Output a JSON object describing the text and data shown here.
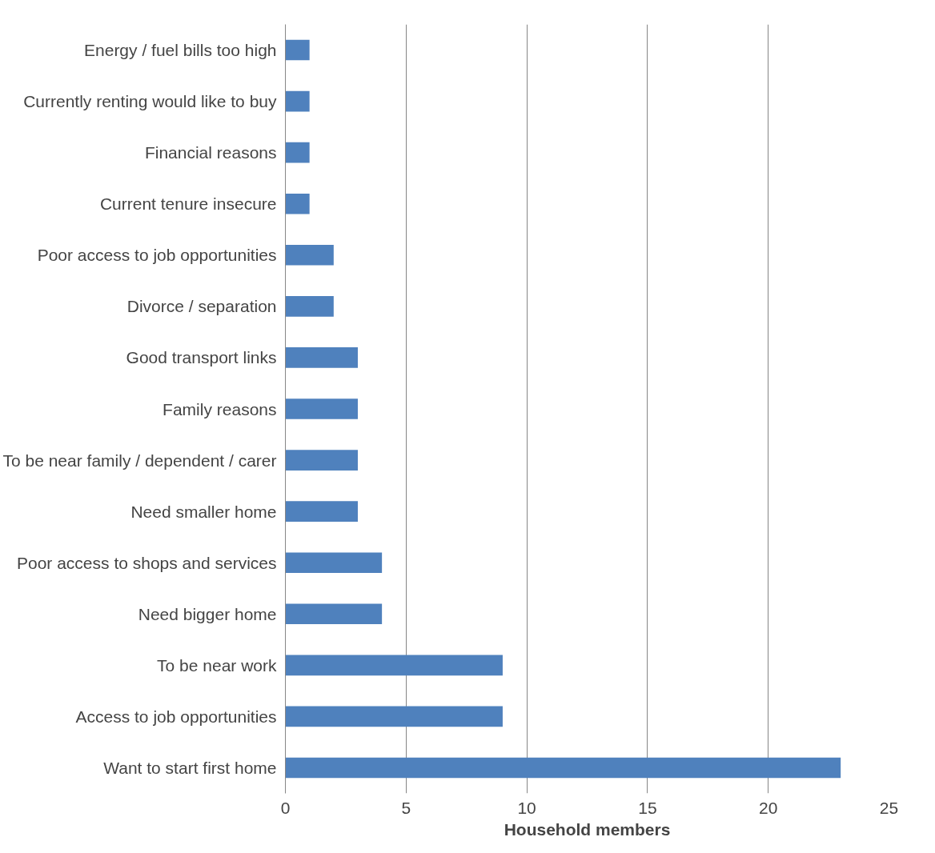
{
  "chart_data": {
    "type": "bar",
    "orientation": "horizontal",
    "xlabel": "Household members",
    "categories": [
      "Energy / fuel bills too high",
      "Currently renting would like to buy",
      "Financial reasons",
      "Current tenure insecure",
      "Poor access to job opportunities",
      "Divorce / separation",
      "Good transport links",
      "Family reasons",
      "To be near family / dependent / carer",
      "Need smaller home",
      "Poor access to shops and services",
      "Need bigger home",
      "To be near work",
      "Access to job opportunities",
      "Want to start first home"
    ],
    "values": [
      1,
      1,
      1,
      1,
      2,
      2,
      3,
      3,
      3,
      3,
      4,
      4,
      9,
      9,
      23
    ],
    "color": "#4f81bd",
    "xlim": [
      0,
      25
    ],
    "xticks": [
      0,
      5,
      10,
      15,
      20,
      25
    ],
    "grid": "x"
  }
}
